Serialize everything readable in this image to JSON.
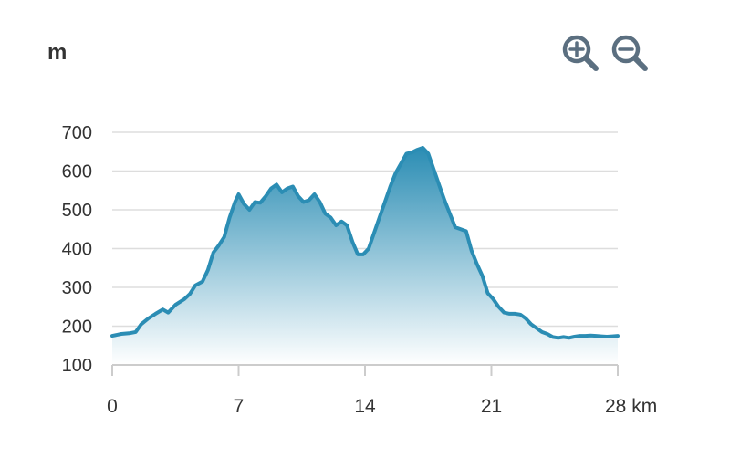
{
  "header": {
    "unit_label": "m",
    "zoom_in_icon": "zoom-in-icon",
    "zoom_out_icon": "zoom-out-icon"
  },
  "colors": {
    "line": "#2b8db4",
    "fill_top": "#2b8db4",
    "fill_bottom": "#ffffff",
    "grid": "#dddddd",
    "axis": "#cccccc",
    "icon": "#5b6f80"
  },
  "chart_data": {
    "type": "area",
    "title": "",
    "xlabel": "",
    "ylabel": "m",
    "x_unit": "km",
    "xlim": [
      0,
      28
    ],
    "ylim": [
      100,
      700
    ],
    "x_ticks": [
      0,
      7,
      14,
      21,
      28
    ],
    "x_tick_labels": [
      "0",
      "7",
      "14",
      "21",
      "28 km"
    ],
    "y_ticks": [
      100,
      200,
      300,
      400,
      500,
      600,
      700
    ],
    "y_tick_labels": [
      "100",
      "200",
      "300",
      "400",
      "500",
      "600",
      "700"
    ],
    "grid": true,
    "legend": "none",
    "series": [
      {
        "x": [
          0,
          0.5,
          1,
          1.3,
          1.6,
          2,
          2.4,
          2.8,
          3.1,
          3.5,
          4.0,
          4.3,
          4.6,
          5.0,
          5.3,
          5.6,
          5.9,
          6.2,
          6.5,
          6.8,
          7.0,
          7.3,
          7.6,
          7.9,
          8.2,
          8.5,
          8.8,
          9.1,
          9.4,
          9.7,
          10.0,
          10.3,
          10.6,
          10.9,
          11.2,
          11.5,
          11.8,
          12.1,
          12.4,
          12.7,
          13.0,
          13.3,
          13.6,
          13.9,
          14.2,
          14.5,
          14.8,
          15.1,
          15.4,
          15.7,
          16.0,
          16.3,
          16.6,
          16.9,
          17.2,
          17.5,
          17.8,
          18.1,
          18.4,
          18.7,
          19.0,
          19.3,
          19.6,
          19.9,
          20.2,
          20.5,
          20.8,
          21.1,
          21.4,
          21.7,
          22.0,
          22.3,
          22.6,
          22.9,
          23.2,
          23.5,
          23.8,
          24.1,
          24.4,
          24.7,
          25.0,
          25.3,
          25.6,
          25.9,
          26.2,
          26.5,
          26.8,
          27.1,
          27.4,
          27.7,
          28
        ],
        "y": [
          175,
          180,
          182,
          185,
          205,
          220,
          232,
          243,
          235,
          255,
          270,
          283,
          305,
          315,
          345,
          390,
          408,
          430,
          480,
          520,
          540,
          515,
          500,
          520,
          518,
          535,
          555,
          565,
          545,
          555,
          560,
          535,
          520,
          525,
          540,
          520,
          490,
          480,
          460,
          470,
          460,
          418,
          385,
          385,
          400,
          440,
          480,
          520,
          560,
          595,
          620,
          645,
          648,
          655,
          660,
          645,
          605,
          565,
          525,
          490,
          455,
          450,
          445,
          395,
          360,
          330,
          285,
          270,
          250,
          235,
          232,
          232,
          230,
          220,
          205,
          195,
          185,
          180,
          172,
          170,
          172,
          170,
          173,
          175,
          175,
          176,
          175,
          174,
          173,
          174,
          175
        ]
      }
    ]
  }
}
